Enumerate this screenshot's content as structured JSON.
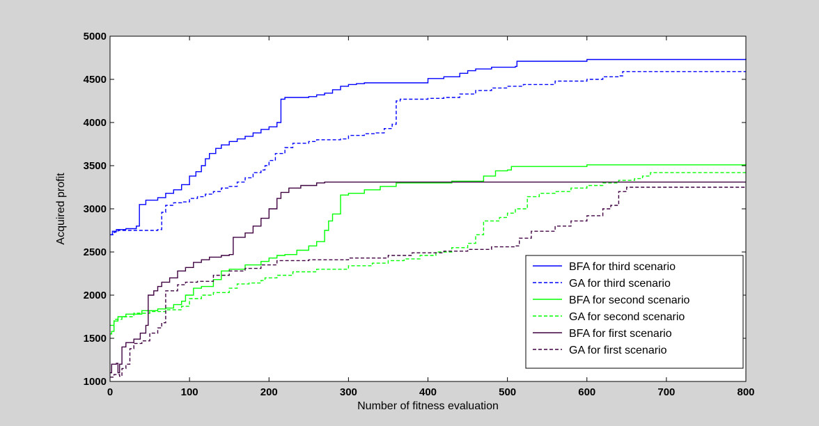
{
  "chart_data": {
    "type": "line",
    "title": "",
    "xlabel": "Number of fitness evaluation",
    "ylabel": "Acquired profit",
    "xlim": [
      0,
      800
    ],
    "ylim": [
      1000,
      5000
    ],
    "xticks": [
      0,
      100,
      200,
      300,
      400,
      500,
      600,
      700,
      800
    ],
    "yticks": [
      1000,
      1500,
      2000,
      2500,
      3000,
      3500,
      4000,
      4500,
      5000
    ],
    "grid": false,
    "legend_position": "bottom-right",
    "series": [
      {
        "name": "BFA for third scenario",
        "color": "#0000ff",
        "dash": "solid",
        "points": [
          [
            0,
            2700
          ],
          [
            3,
            2740
          ],
          [
            8,
            2760
          ],
          [
            20,
            2770
          ],
          [
            33,
            2800
          ],
          [
            37,
            3050
          ],
          [
            45,
            3100
          ],
          [
            60,
            3130
          ],
          [
            70,
            3180
          ],
          [
            80,
            3220
          ],
          [
            90,
            3280
          ],
          [
            100,
            3380
          ],
          [
            108,
            3430
          ],
          [
            115,
            3500
          ],
          [
            120,
            3580
          ],
          [
            125,
            3640
          ],
          [
            133,
            3700
          ],
          [
            140,
            3740
          ],
          [
            150,
            3780
          ],
          [
            160,
            3810
          ],
          [
            170,
            3840
          ],
          [
            180,
            3880
          ],
          [
            190,
            3920
          ],
          [
            200,
            3950
          ],
          [
            210,
            4000
          ],
          [
            215,
            4270
          ],
          [
            220,
            4290
          ],
          [
            250,
            4300
          ],
          [
            260,
            4320
          ],
          [
            270,
            4340
          ],
          [
            280,
            4380
          ],
          [
            290,
            4420
          ],
          [
            300,
            4440
          ],
          [
            310,
            4450
          ],
          [
            320,
            4460
          ],
          [
            400,
            4510
          ],
          [
            420,
            4530
          ],
          [
            440,
            4570
          ],
          [
            450,
            4600
          ],
          [
            460,
            4620
          ],
          [
            480,
            4640
          ],
          [
            510,
            4650
          ],
          [
            512,
            4710
          ],
          [
            600,
            4730
          ],
          [
            800,
            4740
          ]
        ]
      },
      {
        "name": "GA for third scenario",
        "color": "#0000ff",
        "dash": "dashed",
        "points": [
          [
            0,
            2700
          ],
          [
            5,
            2730
          ],
          [
            10,
            2750
          ],
          [
            60,
            2760
          ],
          [
            65,
            2960
          ],
          [
            70,
            3040
          ],
          [
            80,
            3070
          ],
          [
            90,
            3080
          ],
          [
            100,
            3120
          ],
          [
            110,
            3140
          ],
          [
            120,
            3170
          ],
          [
            130,
            3200
          ],
          [
            140,
            3240
          ],
          [
            150,
            3260
          ],
          [
            160,
            3310
          ],
          [
            170,
            3360
          ],
          [
            180,
            3420
          ],
          [
            190,
            3450
          ],
          [
            195,
            3500
          ],
          [
            200,
            3560
          ],
          [
            208,
            3640
          ],
          [
            220,
            3710
          ],
          [
            230,
            3760
          ],
          [
            250,
            3780
          ],
          [
            260,
            3800
          ],
          [
            290,
            3810
          ],
          [
            300,
            3850
          ],
          [
            320,
            3870
          ],
          [
            335,
            3880
          ],
          [
            345,
            3930
          ],
          [
            355,
            3980
          ],
          [
            360,
            4250
          ],
          [
            365,
            4270
          ],
          [
            400,
            4280
          ],
          [
            420,
            4290
          ],
          [
            440,
            4330
          ],
          [
            460,
            4370
          ],
          [
            480,
            4400
          ],
          [
            500,
            4420
          ],
          [
            520,
            4440
          ],
          [
            560,
            4480
          ],
          [
            600,
            4500
          ],
          [
            620,
            4530
          ],
          [
            640,
            4540
          ],
          [
            645,
            4590
          ],
          [
            800,
            4590
          ]
        ]
      },
      {
        "name": "BFA for second scenario",
        "color": "#00ff00",
        "dash": "solid",
        "points": [
          [
            0,
            1550
          ],
          [
            2,
            1580
          ],
          [
            5,
            1700
          ],
          [
            10,
            1750
          ],
          [
            20,
            1780
          ],
          [
            40,
            1820
          ],
          [
            60,
            1840
          ],
          [
            70,
            1850
          ],
          [
            80,
            1890
          ],
          [
            90,
            1930
          ],
          [
            95,
            2000
          ],
          [
            105,
            2080
          ],
          [
            115,
            2100
          ],
          [
            130,
            2180
          ],
          [
            140,
            2280
          ],
          [
            150,
            2300
          ],
          [
            170,
            2350
          ],
          [
            190,
            2390
          ],
          [
            200,
            2430
          ],
          [
            210,
            2460
          ],
          [
            220,
            2470
          ],
          [
            235,
            2520
          ],
          [
            250,
            2570
          ],
          [
            260,
            2620
          ],
          [
            270,
            2750
          ],
          [
            275,
            2860
          ],
          [
            280,
            2940
          ],
          [
            290,
            3160
          ],
          [
            300,
            3180
          ],
          [
            320,
            3220
          ],
          [
            340,
            3260
          ],
          [
            360,
            3300
          ],
          [
            430,
            3320
          ],
          [
            470,
            3380
          ],
          [
            485,
            3440
          ],
          [
            500,
            3450
          ],
          [
            505,
            3490
          ],
          [
            600,
            3510
          ],
          [
            800,
            3520
          ]
        ]
      },
      {
        "name": "GA for second scenario",
        "color": "#00ff00",
        "dash": "dashed",
        "points": [
          [
            0,
            1650
          ],
          [
            5,
            1720
          ],
          [
            15,
            1750
          ],
          [
            30,
            1790
          ],
          [
            50,
            1810
          ],
          [
            70,
            1830
          ],
          [
            90,
            1870
          ],
          [
            100,
            1960
          ],
          [
            115,
            2000
          ],
          [
            130,
            2030
          ],
          [
            150,
            2080
          ],
          [
            160,
            2130
          ],
          [
            175,
            2140
          ],
          [
            190,
            2170
          ],
          [
            195,
            2200
          ],
          [
            210,
            2230
          ],
          [
            230,
            2270
          ],
          [
            260,
            2300
          ],
          [
            300,
            2340
          ],
          [
            330,
            2370
          ],
          [
            350,
            2400
          ],
          [
            370,
            2420
          ],
          [
            390,
            2460
          ],
          [
            410,
            2500
          ],
          [
            430,
            2550
          ],
          [
            450,
            2600
          ],
          [
            460,
            2700
          ],
          [
            470,
            2860
          ],
          [
            490,
            2900
          ],
          [
            500,
            2950
          ],
          [
            510,
            3000
          ],
          [
            525,
            3140
          ],
          [
            540,
            3180
          ],
          [
            560,
            3200
          ],
          [
            580,
            3240
          ],
          [
            600,
            3270
          ],
          [
            620,
            3300
          ],
          [
            640,
            3330
          ],
          [
            660,
            3350
          ],
          [
            670,
            3380
          ],
          [
            680,
            3420
          ],
          [
            800,
            3420
          ]
        ]
      },
      {
        "name": "BFA for first scenario",
        "color": "#3f0040",
        "dash": "solid",
        "points": [
          [
            0,
            1100
          ],
          [
            2,
            1200
          ],
          [
            8,
            1210
          ],
          [
            10,
            1100
          ],
          [
            12,
            1200
          ],
          [
            15,
            1400
          ],
          [
            20,
            1450
          ],
          [
            30,
            1490
          ],
          [
            38,
            1560
          ],
          [
            45,
            1650
          ],
          [
            48,
            2000
          ],
          [
            55,
            2050
          ],
          [
            60,
            2100
          ],
          [
            65,
            2150
          ],
          [
            75,
            2200
          ],
          [
            85,
            2280
          ],
          [
            95,
            2320
          ],
          [
            105,
            2380
          ],
          [
            115,
            2410
          ],
          [
            125,
            2440
          ],
          [
            140,
            2460
          ],
          [
            150,
            2470
          ],
          [
            155,
            2670
          ],
          [
            170,
            2720
          ],
          [
            180,
            2800
          ],
          [
            190,
            2890
          ],
          [
            200,
            3000
          ],
          [
            210,
            3120
          ],
          [
            215,
            3190
          ],
          [
            225,
            3240
          ],
          [
            240,
            3270
          ],
          [
            260,
            3300
          ],
          [
            270,
            3310
          ],
          [
            800,
            3310
          ]
        ]
      },
      {
        "name": "GA for first scenario",
        "color": "#3f0040",
        "dash": "dashed",
        "points": [
          [
            0,
            1050
          ],
          [
            5,
            1080
          ],
          [
            12,
            1060
          ],
          [
            15,
            1150
          ],
          [
            20,
            1200
          ],
          [
            25,
            1380
          ],
          [
            30,
            1440
          ],
          [
            40,
            1470
          ],
          [
            50,
            1560
          ],
          [
            60,
            1620
          ],
          [
            65,
            1680
          ],
          [
            70,
            2050
          ],
          [
            85,
            2120
          ],
          [
            95,
            2150
          ],
          [
            110,
            2160
          ],
          [
            130,
            2230
          ],
          [
            150,
            2280
          ],
          [
            170,
            2310
          ],
          [
            190,
            2350
          ],
          [
            210,
            2400
          ],
          [
            250,
            2410
          ],
          [
            300,
            2430
          ],
          [
            350,
            2460
          ],
          [
            380,
            2490
          ],
          [
            420,
            2510
          ],
          [
            450,
            2530
          ],
          [
            480,
            2560
          ],
          [
            510,
            2570
          ],
          [
            515,
            2660
          ],
          [
            530,
            2740
          ],
          [
            560,
            2800
          ],
          [
            580,
            2860
          ],
          [
            600,
            2920
          ],
          [
            620,
            3000
          ],
          [
            630,
            3040
          ],
          [
            640,
            3200
          ],
          [
            650,
            3250
          ],
          [
            800,
            3260
          ]
        ]
      }
    ]
  }
}
